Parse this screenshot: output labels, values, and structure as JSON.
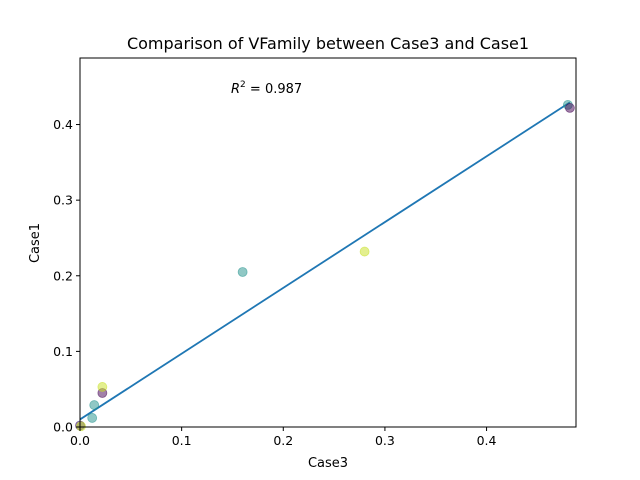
{
  "chart_data": {
    "type": "scatter",
    "title": "Comparison of VFamily between Case3 and Case1",
    "xlabel": "Case3",
    "ylabel": "Case1",
    "xlim": [
      0,
      0.488
    ],
    "ylim": [
      0,
      0.488
    ],
    "xticks": [
      0,
      0.1,
      0.2,
      0.3,
      0.4
    ],
    "yticks": [
      0,
      0.1,
      0.2,
      0.3,
      0.4
    ],
    "xtick_labels": [
      "0.0",
      "0.1",
      "0.2",
      "0.3",
      "0.4"
    ],
    "ytick_labels": [
      "0.0",
      "0.1",
      "0.2",
      "0.3",
      "0.4"
    ],
    "grid": false,
    "annotation": {
      "symbol": "R",
      "exponent": "2",
      "text": " = 0.987"
    },
    "fit_line": {
      "x_start": 0,
      "x_end": 0.482,
      "slope": 0.87,
      "intercept": 0.01,
      "color": "#1f77b4"
    },
    "points": [
      {
        "x": 0.0,
        "y": 0.002,
        "color": "#3b0f70"
      },
      {
        "x": 0.001,
        "y": 0.001,
        "color": "#c7e020"
      },
      {
        "x": 0.012,
        "y": 0.012,
        "color": "#21918c"
      },
      {
        "x": 0.014,
        "y": 0.029,
        "color": "#21918c"
      },
      {
        "x": 0.022,
        "y": 0.045,
        "color": "#440154"
      },
      {
        "x": 0.022,
        "y": 0.053,
        "color": "#c7e020"
      },
      {
        "x": 0.16,
        "y": 0.205,
        "color": "#21918c"
      },
      {
        "x": 0.28,
        "y": 0.232,
        "color": "#c7e020"
      },
      {
        "x": 0.48,
        "y": 0.426,
        "color": "#21918c"
      },
      {
        "x": 0.482,
        "y": 0.422,
        "color": "#440154"
      }
    ]
  }
}
